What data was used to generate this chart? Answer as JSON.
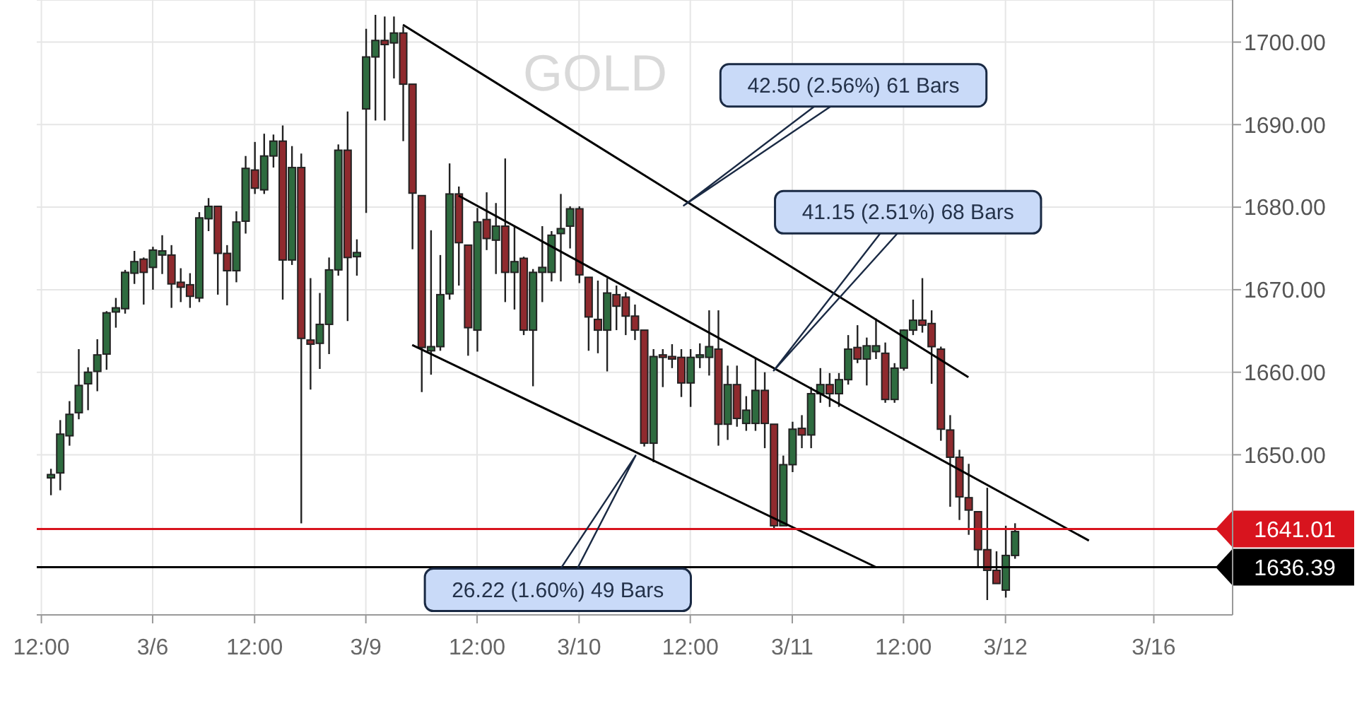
{
  "chart_data": {
    "type": "candlestick",
    "title": "GOLD",
    "categories": [
      "12:00",
      null,
      null,
      null,
      null,
      null,
      null,
      null,
      null,
      null,
      null,
      null,
      "3/6",
      null,
      null,
      null,
      null,
      null,
      null,
      null,
      null,
      null,
      null,
      "12:00",
      null,
      null,
      null,
      null,
      null,
      null,
      null,
      null,
      null,
      null,
      null,
      "3/9",
      null,
      null,
      null,
      null,
      null,
      null,
      null,
      null,
      null,
      null,
      null,
      "12:00",
      null,
      null,
      null,
      null,
      null,
      null,
      null,
      null,
      null,
      null,
      "3/10",
      null,
      null,
      null,
      null,
      null,
      null,
      null,
      null,
      null,
      null,
      null,
      "12:00",
      null,
      null,
      null,
      null,
      null,
      null,
      null,
      null,
      null,
      null,
      "3/11",
      null,
      null,
      null,
      null,
      null,
      null,
      null,
      null,
      null,
      null,
      null,
      "12:00",
      null,
      null,
      null,
      null,
      null,
      null,
      null,
      null,
      null,
      null,
      "3/12",
      null,
      null,
      null,
      null,
      null,
      null,
      null,
      null,
      null,
      null,
      null,
      null,
      null,
      null,
      null,
      "3/16",
      null,
      null,
      null,
      null,
      null,
      null,
      null,
      null
    ],
    "ohlc": [
      null,
      [
        1647.2,
        1648.3,
        1645.1,
        1647.6
      ],
      [
        1647.8,
        1654.2,
        1645.7,
        1652.5
      ],
      [
        1652.3,
        1656.5,
        1651.1,
        1654.9
      ],
      [
        1655.1,
        1662.8,
        1654.3,
        1658.4
      ],
      [
        1658.6,
        1660.6,
        1655.4,
        1660.0
      ],
      [
        1660.1,
        1664.0,
        1657.7,
        1662.1
      ],
      [
        1662.2,
        1667.4,
        1660.3,
        1667.2
      ],
      [
        1667.3,
        1669.0,
        1665.4,
        1667.8
      ],
      [
        1667.7,
        1672.4,
        1667.1,
        1672.1
      ],
      [
        1672.0,
        1674.7,
        1670.7,
        1673.4
      ],
      [
        1673.7,
        1673.9,
        1668.2,
        1672.1
      ],
      [
        1672.7,
        1675.2,
        1670.0,
        1674.8
      ],
      [
        1674.2,
        1676.6,
        1671.9,
        1674.7
      ],
      [
        1674.2,
        1675.4,
        1667.8,
        1670.7
      ],
      [
        1670.9,
        1672.6,
        1668.5,
        1670.3
      ],
      [
        1670.6,
        1672.0,
        1667.8,
        1669.2
      ],
      [
        1669.0,
        1679.4,
        1668.5,
        1678.7
      ],
      [
        1678.6,
        1681.1,
        1677.1,
        1680.1
      ],
      [
        1680.1,
        1680.1,
        1669.4,
        1674.4
      ],
      [
        1674.4,
        1675.4,
        1668.1,
        1672.3
      ],
      [
        1672.3,
        1679.5,
        1670.9,
        1678.2
      ],
      [
        1678.3,
        1686.2,
        1676.8,
        1684.7
      ],
      [
        1684.5,
        1687.9,
        1681.6,
        1682.3
      ],
      [
        1682.1,
        1688.9,
        1681.6,
        1686.2
      ],
      [
        1686.2,
        1688.8,
        1684.8,
        1688.0
      ],
      [
        1688.0,
        1689.9,
        1668.8,
        1673.6
      ],
      [
        1673.6,
        1687.4,
        1673.0,
        1684.8
      ],
      [
        1684.8,
        1686.5,
        1641.7,
        1664.1
      ],
      [
        1663.9,
        1671.4,
        1657.9,
        1663.4
      ],
      [
        1663.5,
        1669.6,
        1660.4,
        1665.8
      ],
      [
        1665.8,
        1673.9,
        1662.2,
        1672.4
      ],
      [
        1672.4,
        1687.6,
        1671.7,
        1686.9
      ],
      [
        1686.9,
        1691.6,
        1666.2,
        1673.9
      ],
      [
        1674.0,
        1676.1,
        1671.7,
        1674.5
      ],
      [
        1691.9,
        1701.6,
        1679.3,
        1698.2
      ],
      [
        1698.2,
        1703.3,
        1690.5,
        1700.2
      ],
      [
        1700.2,
        1703.1,
        1690.5,
        1699.7
      ],
      [
        1699.9,
        1703.1,
        1695.6,
        1701.1
      ],
      [
        1701.1,
        1701.9,
        1688.0,
        1694.9
      ],
      [
        1694.9,
        1694.9,
        1674.9,
        1681.7
      ],
      [
        1681.4,
        1681.4,
        1657.6,
        1663.0
      ],
      [
        1662.6,
        1677.2,
        1659.7,
        1663.1
      ],
      [
        1663.1,
        1674.2,
        1662.6,
        1669.4
      ],
      [
        1669.5,
        1685.3,
        1668.8,
        1681.6
      ],
      [
        1681.6,
        1682.5,
        1670.5,
        1675.7
      ],
      [
        1675.4,
        1675.4,
        1662.0,
        1665.4
      ],
      [
        1665.1,
        1679.9,
        1662.5,
        1678.2
      ],
      [
        1678.5,
        1681.8,
        1674.8,
        1676.2
      ],
      [
        1676.0,
        1680.5,
        1671.9,
        1677.7
      ],
      [
        1677.7,
        1685.9,
        1668.5,
        1672.1
      ],
      [
        1672.1,
        1677.7,
        1667.6,
        1673.4
      ],
      [
        1673.8,
        1674.0,
        1664.5,
        1665.1
      ],
      [
        1665.1,
        1672.5,
        1658.3,
        1672.1
      ],
      [
        1672.1,
        1677.7,
        1668.5,
        1672.7
      ],
      [
        1672.1,
        1677.1,
        1671.0,
        1676.6
      ],
      [
        1676.8,
        1681.6,
        1671.0,
        1677.4
      ],
      [
        1677.7,
        1680.1,
        1675.0,
        1679.8
      ],
      [
        1679.8,
        1680.1,
        1670.8,
        1671.8
      ],
      [
        1671.5,
        1671.5,
        1662.6,
        1666.7
      ],
      [
        1666.4,
        1671.1,
        1662.3,
        1665.1
      ],
      [
        1665.1,
        1671.4,
        1660.1,
        1669.6
      ],
      [
        1669.4,
        1670.5,
        1665.1,
        1668.0
      ],
      [
        1669.1,
        1669.7,
        1664.5,
        1666.8
      ],
      [
        1666.8,
        1668.2,
        1663.9,
        1665.1
      ],
      [
        1665.1,
        1665.1,
        1651.0,
        1651.4
      ],
      [
        1651.4,
        1662.8,
        1649.1,
        1661.9
      ],
      [
        1662.1,
        1662.8,
        1658.2,
        1661.8
      ],
      [
        1661.9,
        1663.4,
        1660.5,
        1661.6
      ],
      [
        1661.8,
        1662.8,
        1657.0,
        1658.7
      ],
      [
        1658.7,
        1662.8,
        1655.8,
        1661.8
      ],
      [
        1661.8,
        1663.5,
        1660.5,
        1662.1
      ],
      [
        1661.8,
        1667.5,
        1659.6,
        1663.1
      ],
      [
        1662.8,
        1667.5,
        1651.1,
        1653.7
      ],
      [
        1653.7,
        1660.8,
        1651.8,
        1658.5
      ],
      [
        1658.5,
        1660.8,
        1653.4,
        1654.4
      ],
      [
        1653.8,
        1657.1,
        1652.9,
        1655.4
      ],
      [
        1653.8,
        1661.7,
        1652.9,
        1657.8
      ],
      [
        1657.8,
        1660.0,
        1650.8,
        1653.8
      ],
      [
        1653.7,
        1653.7,
        1641.1,
        1641.4
      ],
      [
        1641.4,
        1649.9,
        1641.4,
        1648.8
      ],
      [
        1648.8,
        1654.0,
        1647.9,
        1653.1
      ],
      [
        1653.2,
        1654.8,
        1650.8,
        1652.4
      ],
      [
        1652.4,
        1658.2,
        1650.8,
        1657.4
      ],
      [
        1657.4,
        1660.5,
        1656.3,
        1658.5
      ],
      [
        1658.5,
        1659.9,
        1655.8,
        1657.4
      ],
      [
        1657.4,
        1659.9,
        1655.8,
        1659.1
      ],
      [
        1659.1,
        1664.5,
        1658.5,
        1662.8
      ],
      [
        1663.0,
        1665.7,
        1661.1,
        1661.6
      ],
      [
        1661.6,
        1664.2,
        1658.4,
        1663.2
      ],
      [
        1662.5,
        1666.5,
        1661.6,
        1663.2
      ],
      [
        1662.3,
        1663.6,
        1656.3,
        1656.7
      ],
      [
        1656.7,
        1661.1,
        1656.3,
        1660.5
      ],
      [
        1660.5,
        1665.2,
        1660.2,
        1665.1
      ],
      [
        1665.1,
        1668.8,
        1664.5,
        1666.3
      ],
      [
        1666.3,
        1671.4,
        1664.8,
        1665.7
      ],
      [
        1665.9,
        1667.5,
        1658.6,
        1663.1
      ],
      [
        1662.8,
        1663.1,
        1651.7,
        1653.1
      ],
      [
        1653.0,
        1654.8,
        1643.7,
        1649.7
      ],
      [
        1649.7,
        1650.6,
        1642.1,
        1644.9
      ],
      [
        1644.8,
        1648.9,
        1640.3,
        1643.3
      ],
      [
        1643.1,
        1643.1,
        1636.5,
        1638.5
      ],
      [
        1638.5,
        1646.0,
        1632.4,
        1636.0
      ],
      [
        1636.0,
        1638.3,
        1634.4,
        1634.4
      ],
      [
        1633.6,
        1641.4,
        1632.7,
        1637.8
      ],
      [
        1637.8,
        1641.7,
        1637.4,
        1640.7
      ],
      null,
      null,
      null,
      null,
      null,
      null,
      null,
      null,
      null,
      null,
      null,
      null,
      null,
      null,
      null,
      null,
      null,
      null,
      null,
      null,
      null,
      null,
      null
    ],
    "colors": [
      null,
      "#2e6b3f",
      "#2e6b3f",
      "#2e6b3f",
      "#2e6b3f",
      "#2e6b3f",
      "#2e6b3f",
      "#2e6b3f",
      "#2e6b3f",
      "#2e6b3f",
      "#2e6b3f",
      "#8f2a2e",
      "#2e6b3f",
      "#2e6b3f",
      "#8f2a2e",
      "#8f2a2e",
      "#8f2a2e",
      "#2e6b3f",
      "#2e6b3f",
      "#8f2a2e",
      "#8f2a2e",
      "#2e6b3f",
      "#2e6b3f",
      "#8f2a2e",
      "#2e6b3f",
      "#2e6b3f",
      "#8f2a2e",
      "#2e6b3f",
      "#8f2a2e",
      "#8f2a2e",
      "#2e6b3f",
      "#2e6b3f",
      "#2e6b3f",
      "#8f2a2e",
      "#2e6b3f",
      "#2e6b3f",
      "#2e6b3f",
      "#8f2a2e",
      "#2e6b3f",
      "#8f2a2e",
      "#8f2a2e",
      "#8f2a2e",
      "#2e6b3f",
      "#2e6b3f",
      "#2e6b3f",
      "#8f2a2e",
      "#8f2a2e",
      "#2e6b3f",
      "#8f2a2e",
      "#2e6b3f",
      "#8f2a2e",
      "#2e6b3f",
      "#8f2a2e",
      "#2e6b3f",
      "#2e6b3f",
      "#2e6b3f",
      "#2e6b3f",
      "#2e6b3f",
      "#8f2a2e",
      "#8f2a2e",
      "#8f2a2e",
      "#2e6b3f",
      "#8f2a2e",
      "#8f2a2e",
      "#8f2a2e",
      "#8f2a2e",
      "#2e6b3f",
      "#8f2a2e",
      "#8f2a2e",
      "#8f2a2e",
      "#2e6b3f",
      "#2e6b3f",
      "#2e6b3f",
      "#8f2a2e",
      "#2e6b3f",
      "#8f2a2e",
      "#2e6b3f",
      "#2e6b3f",
      "#8f2a2e",
      "#8f2a2e",
      "#2e6b3f",
      "#2e6b3f",
      "#8f2a2e",
      "#2e6b3f",
      "#2e6b3f",
      "#8f2a2e",
      "#2e6b3f",
      "#2e6b3f",
      "#8f2a2e",
      "#2e6b3f",
      "#2e6b3f",
      "#8f2a2e",
      "#2e6b3f",
      "#2e6b3f",
      "#2e6b3f",
      "#8f2a2e",
      "#8f2a2e",
      "#8f2a2e",
      "#8f2a2e",
      "#8f2a2e",
      "#8f2a2e",
      "#8f2a2e",
      "#8f2a2e",
      "#8f2a2e",
      "#2e6b3f",
      "#2e6b3f",
      null,
      null,
      null,
      null,
      null,
      null,
      null,
      null,
      null,
      null,
      null,
      null,
      null,
      null,
      null,
      null,
      null,
      null,
      null,
      null,
      null,
      null,
      null
    ],
    "series": [
      {
        "type": "line",
        "color": "#000000",
        "values": [
          null,
          null,
          null,
          null,
          null,
          null,
          null,
          null,
          null,
          null,
          null,
          null,
          null,
          null,
          null,
          null,
          null,
          null,
          null,
          null,
          null,
          null,
          null,
          null,
          null,
          null,
          null,
          null,
          null,
          null,
          null,
          null,
          null,
          null,
          null,
          null,
          null,
          null,
          null,
          1702.1,
          null,
          null,
          null,
          null,
          null,
          null,
          null,
          null,
          null,
          null,
          null,
          null,
          null,
          null,
          null,
          null,
          null,
          null,
          null,
          null,
          null,
          null,
          null,
          null,
          null,
          null,
          null,
          null,
          null,
          null,
          null,
          null,
          null,
          null,
          null,
          null,
          null,
          null,
          null,
          null,
          null,
          null,
          null,
          null,
          null,
          null,
          null,
          null,
          null,
          null,
          null,
          null,
          null,
          null,
          null,
          null,
          null,
          null,
          null,
          null,
          1659.4,
          null,
          null,
          null,
          null,
          null,
          null,
          null,
          null,
          null,
          null,
          null,
          null,
          null,
          null,
          null,
          null,
          null,
          null,
          null,
          null,
          null,
          null,
          null,
          null,
          null,
          null,
          null,
          null
        ]
      },
      {
        "type": "line",
        "color": "#000000",
        "values": [
          null,
          null,
          null,
          null,
          null,
          null,
          null,
          null,
          null,
          null,
          null,
          null,
          null,
          null,
          null,
          null,
          null,
          null,
          null,
          null,
          null,
          null,
          null,
          null,
          null,
          null,
          null,
          null,
          null,
          null,
          null,
          null,
          null,
          null,
          null,
          null,
          null,
          null,
          null,
          null,
          null,
          null,
          null,
          null,
          null,
          1681.4,
          null,
          null,
          null,
          null,
          null,
          null,
          null,
          null,
          null,
          null,
          null,
          null,
          null,
          null,
          null,
          null,
          null,
          null,
          null,
          null,
          null,
          null,
          null,
          null,
          null,
          null,
          null,
          null,
          null,
          null,
          null,
          null,
          null,
          null,
          null,
          null,
          null,
          null,
          null,
          null,
          null,
          null,
          null,
          null,
          null,
          null,
          null,
          null,
          null,
          null,
          null,
          null,
          null,
          null,
          null,
          null,
          null,
          null,
          null,
          null,
          null,
          null,
          null,
          null,
          null,
          null,
          null,
          1639.6,
          null,
          null,
          null,
          null,
          null,
          null,
          null,
          null,
          null,
          null,
          null,
          null,
          null,
          null,
          null
        ]
      },
      {
        "type": "line",
        "color": "#000000",
        "values": [
          null,
          null,
          null,
          null,
          null,
          null,
          null,
          null,
          null,
          null,
          null,
          null,
          null,
          null,
          null,
          null,
          null,
          null,
          null,
          null,
          null,
          null,
          null,
          null,
          null,
          null,
          null,
          null,
          null,
          null,
          null,
          null,
          null,
          null,
          null,
          null,
          null,
          null,
          null,
          null,
          1663.3,
          null,
          null,
          null,
          null,
          null,
          null,
          null,
          null,
          null,
          null,
          null,
          null,
          null,
          null,
          null,
          null,
          null,
          null,
          null,
          null,
          null,
          null,
          null,
          null,
          null,
          null,
          null,
          null,
          null,
          null,
          null,
          null,
          null,
          null,
          null,
          null,
          null,
          null,
          null,
          null,
          null,
          null,
          null,
          null,
          null,
          null,
          null,
          null,
          null,
          1636.4,
          null,
          null,
          null,
          null,
          null,
          null,
          null,
          null,
          null,
          null,
          null,
          null,
          null,
          null,
          null,
          null,
          null,
          null,
          null,
          null,
          null,
          null,
          null,
          null,
          null,
          null,
          null,
          null,
          null,
          null,
          null,
          null,
          null,
          null,
          null,
          null,
          null,
          null
        ]
      }
    ],
    "ref_lines": [
      {
        "axis": "y",
        "value": 1641.01,
        "label": "1641.01",
        "color": "#d8141e"
      },
      {
        "axis": "y",
        "value": 1636.39,
        "label": "1636.39",
        "color": "#000000"
      }
    ],
    "annotations": [
      "42.50 (2.56%) 61 Bars",
      "41.15 (2.51%) 68 Bars",
      "26.22 (1.60%) 49 Bars"
    ],
    "ylim": [
      1630.6,
      1705.1
    ],
    "yticks": [
      {
        "value": 1650,
        "label": "1650.00"
      },
      {
        "value": 1660,
        "label": "1660.00"
      },
      {
        "value": 1670,
        "label": "1670.00"
      },
      {
        "value": 1680,
        "label": "1680.00"
      },
      {
        "value": 1690,
        "label": "1690.00"
      },
      {
        "value": 1700,
        "label": "1700.00"
      }
    ],
    "grid": true,
    "marker": "none",
    "line_style": "solid"
  }
}
